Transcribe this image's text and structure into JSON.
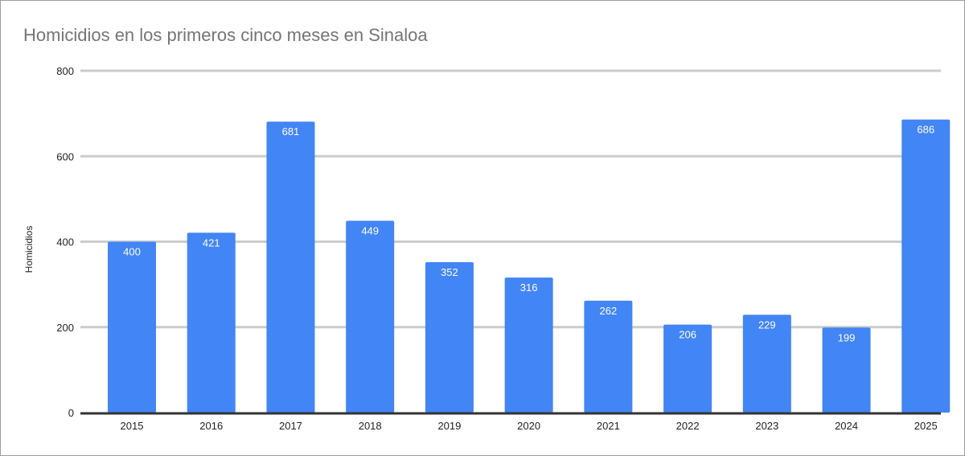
{
  "chart_data": {
    "type": "bar",
    "title": "Homicidios en los primeros cinco meses en Sinaloa",
    "xlabel": "",
    "ylabel": "Homicidios",
    "categories": [
      "2015",
      "2016",
      "2017",
      "2018",
      "2019",
      "2020",
      "2021",
      "2022",
      "2023",
      "2024",
      "2025"
    ],
    "values": [
      400,
      421,
      681,
      449,
      352,
      316,
      262,
      206,
      229,
      199,
      686
    ],
    "ylim": [
      0,
      800
    ],
    "yticks": [
      0,
      200,
      400,
      600,
      800
    ],
    "grid": true,
    "legend": "none",
    "colors": {
      "bar": "#4285f4",
      "grid": "#cccccc",
      "axis": "#333333",
      "label": "#ffffff"
    }
  }
}
